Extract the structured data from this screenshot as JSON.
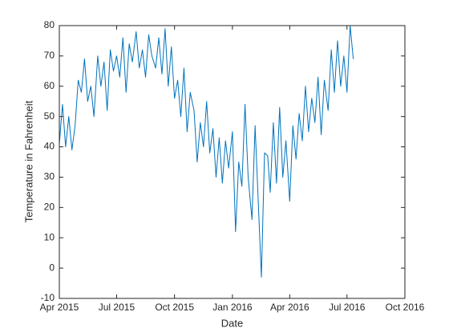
{
  "chart_data": {
    "type": "line",
    "xlabel": "Date",
    "ylabel": "Temperature in Fahrenheit",
    "x": [
      "Apr 2015",
      "May 2015",
      "Jun 2015",
      "Jul 2015",
      "Aug 2015",
      "Sep 2015",
      "Oct 2015",
      "Nov 2015",
      "Dec 2015",
      "Jan 2016",
      "Feb 2016",
      "Mar 2016",
      "Apr 2016",
      "May 2016",
      "Jun 2016",
      "Jul 2016"
    ],
    "series": [
      {
        "color": "#0072bd",
        "values": [
          [
            41,
            54,
            40,
            50,
            39,
            47
          ],
          [
            62,
            58,
            69,
            55,
            60,
            50
          ],
          [
            70,
            60,
            68,
            52,
            72,
            65
          ],
          [
            70,
            63,
            76,
            58,
            74,
            68
          ],
          [
            78,
            66,
            72,
            63,
            77,
            70
          ],
          [
            66,
            76,
            64,
            79,
            60,
            73
          ],
          [
            56,
            62,
            50,
            66,
            45,
            58
          ],
          [
            52,
            35,
            48,
            40,
            55,
            38
          ],
          [
            46,
            30,
            43,
            28,
            42,
            33
          ],
          [
            45,
            12,
            35,
            27,
            54,
            30
          ],
          [
            16,
            47,
            22,
            -3,
            38,
            37
          ],
          [
            25,
            48,
            28,
            53,
            30,
            42
          ],
          [
            22,
            47,
            36,
            51,
            42,
            60
          ],
          [
            45,
            56,
            48,
            63,
            44,
            62
          ],
          [
            52,
            72,
            58,
            75,
            60,
            70
          ],
          [
            58,
            80,
            69
          ]
        ]
      }
    ],
    "xlim": [
      "Apr 2015",
      "Oct 2016"
    ],
    "xticks": [
      "Apr 2015",
      "Jul 2015",
      "Oct 2015",
      "Jan 2016",
      "Apr 2016",
      "Jul 2016",
      "Oct 2016"
    ],
    "ylim": [
      -10,
      80
    ],
    "yticks": [
      -10,
      0,
      10,
      20,
      30,
      40,
      50,
      60,
      70,
      80
    ],
    "box": true
  }
}
